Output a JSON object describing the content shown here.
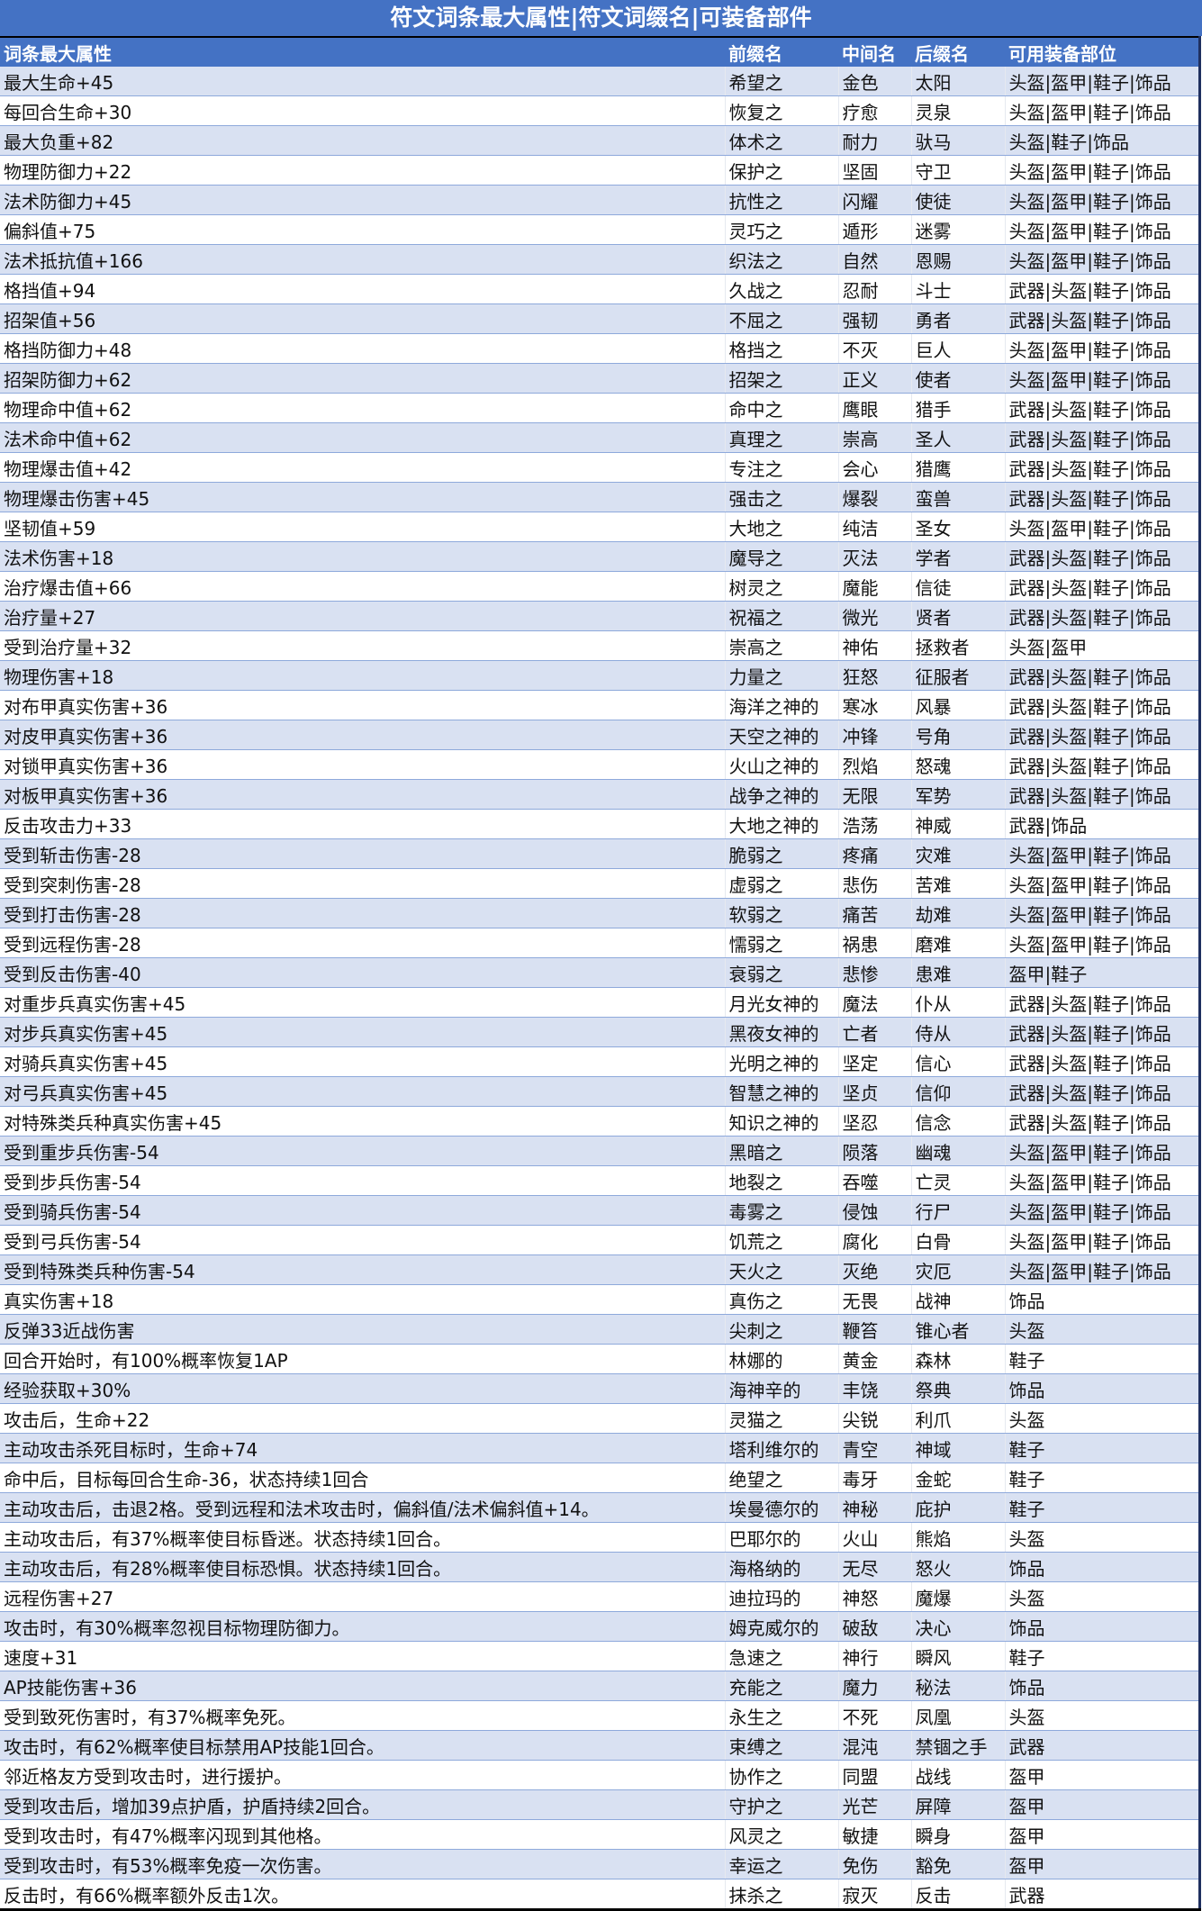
{
  "title": "符文词条最大属性|符文词缀名|可装备部件",
  "headers": [
    "词条最大属性",
    "前缀名",
    "中间名",
    "后缀名",
    "可用装备部位"
  ],
  "colors": {
    "header_bg": "#4472C4",
    "band": "#D9E1F2",
    "row": "#FFFFFF"
  },
  "rows": [
    [
      "最大生命+45",
      "希望之",
      "金色",
      "太阳",
      "头盔|盔甲|鞋子|饰品"
    ],
    [
      "每回合生命+30",
      "恢复之",
      "疗愈",
      "灵泉",
      "头盔|盔甲|鞋子|饰品"
    ],
    [
      "最大负重+82",
      "体术之",
      "耐力",
      "驮马",
      "头盔|鞋子|饰品"
    ],
    [
      "物理防御力+22",
      "保护之",
      "坚固",
      "守卫",
      "头盔|盔甲|鞋子|饰品"
    ],
    [
      "法术防御力+45",
      "抗性之",
      "闪耀",
      "使徒",
      "头盔|盔甲|鞋子|饰品"
    ],
    [
      "偏斜值+75",
      "灵巧之",
      "遁形",
      "迷雾",
      "头盔|盔甲|鞋子|饰品"
    ],
    [
      "法术抵抗值+166",
      "织法之",
      "自然",
      "恩赐",
      "头盔|盔甲|鞋子|饰品"
    ],
    [
      "格挡值+94",
      "久战之",
      "忍耐",
      "斗士",
      "武器|头盔|鞋子|饰品"
    ],
    [
      "招架值+56",
      "不屈之",
      "强韧",
      "勇者",
      "武器|头盔|鞋子|饰品"
    ],
    [
      "格挡防御力+48",
      "格挡之",
      "不灭",
      "巨人",
      "头盔|盔甲|鞋子|饰品"
    ],
    [
      "招架防御力+62",
      "招架之",
      "正义",
      "使者",
      "头盔|盔甲|鞋子|饰品"
    ],
    [
      "物理命中值+62",
      "命中之",
      "鹰眼",
      "猎手",
      "武器|头盔|鞋子|饰品"
    ],
    [
      "法术命中值+62",
      "真理之",
      "崇高",
      "圣人",
      "武器|头盔|鞋子|饰品"
    ],
    [
      "物理爆击值+42",
      "专注之",
      "会心",
      "猎鹰",
      "武器|头盔|鞋子|饰品"
    ],
    [
      "物理爆击伤害+45",
      "强击之",
      "爆裂",
      "蛮兽",
      "武器|头盔|鞋子|饰品"
    ],
    [
      "坚韧值+59",
      "大地之",
      "纯洁",
      "圣女",
      "头盔|盔甲|鞋子|饰品"
    ],
    [
      "法术伤害+18",
      "魔导之",
      "灭法",
      "学者",
      "武器|头盔|鞋子|饰品"
    ],
    [
      "治疗爆击值+66",
      "树灵之",
      "魔能",
      "信徒",
      "武器|头盔|鞋子|饰品"
    ],
    [
      "治疗量+27",
      "祝福之",
      "微光",
      "贤者",
      "武器|头盔|鞋子|饰品"
    ],
    [
      "受到治疗量+32",
      "崇高之",
      "神佑",
      "拯救者",
      "头盔|盔甲"
    ],
    [
      "物理伤害+18",
      "力量之",
      "狂怒",
      "征服者",
      "武器|头盔|鞋子|饰品"
    ],
    [
      "对布甲真实伤害+36",
      "海洋之神的",
      "寒冰",
      "风暴",
      "武器|头盔|鞋子|饰品"
    ],
    [
      "对皮甲真实伤害+36",
      "天空之神的",
      "冲锋",
      "号角",
      "武器|头盔|鞋子|饰品"
    ],
    [
      "对锁甲真实伤害+36",
      "火山之神的",
      "烈焰",
      "怒魂",
      "武器|头盔|鞋子|饰品"
    ],
    [
      "对板甲真实伤害+36",
      "战争之神的",
      "无限",
      "军势",
      "武器|头盔|鞋子|饰品"
    ],
    [
      "反击攻击力+33",
      "大地之神的",
      "浩荡",
      "神威",
      "武器|饰品"
    ],
    [
      "受到斩击伤害-28",
      "脆弱之",
      "疼痛",
      "灾难",
      "头盔|盔甲|鞋子|饰品"
    ],
    [
      "受到突刺伤害-28",
      "虚弱之",
      "悲伤",
      "苦难",
      "头盔|盔甲|鞋子|饰品"
    ],
    [
      "受到打击伤害-28",
      "软弱之",
      "痛苦",
      "劫难",
      "头盔|盔甲|鞋子|饰品"
    ],
    [
      "受到远程伤害-28",
      "懦弱之",
      "祸患",
      "磨难",
      "头盔|盔甲|鞋子|饰品"
    ],
    [
      "受到反击伤害-40",
      "衰弱之",
      "悲惨",
      "患难",
      "盔甲|鞋子"
    ],
    [
      "对重步兵真实伤害+45",
      "月光女神的",
      "魔法",
      "仆从",
      "武器|头盔|鞋子|饰品"
    ],
    [
      "对步兵真实伤害+45",
      "黑夜女神的",
      "亡者",
      "侍从",
      "武器|头盔|鞋子|饰品"
    ],
    [
      "对骑兵真实伤害+45",
      "光明之神的",
      "坚定",
      "信心",
      "武器|头盔|鞋子|饰品"
    ],
    [
      "对弓兵真实伤害+45",
      "智慧之神的",
      "坚贞",
      "信仰",
      "武器|头盔|鞋子|饰品"
    ],
    [
      "对特殊类兵种真实伤害+45",
      "知识之神的",
      "坚忍",
      "信念",
      "武器|头盔|鞋子|饰品"
    ],
    [
      "受到重步兵伤害-54",
      "黑暗之",
      "陨落",
      "幽魂",
      "头盔|盔甲|鞋子|饰品"
    ],
    [
      "受到步兵伤害-54",
      "地裂之",
      "吞噬",
      "亡灵",
      "头盔|盔甲|鞋子|饰品"
    ],
    [
      "受到骑兵伤害-54",
      "毒雾之",
      "侵蚀",
      "行尸",
      "头盔|盔甲|鞋子|饰品"
    ],
    [
      "受到弓兵伤害-54",
      "饥荒之",
      "腐化",
      "白骨",
      "头盔|盔甲|鞋子|饰品"
    ],
    [
      "受到特殊类兵种伤害-54",
      "天火之",
      "灭绝",
      "灾厄",
      "头盔|盔甲|鞋子|饰品"
    ],
    [
      "真实伤害+18",
      "真伤之",
      "无畏",
      "战神",
      "饰品"
    ],
    [
      "反弹33近战伤害",
      "尖刺之",
      "鞭笞",
      "锥心者",
      "头盔"
    ],
    [
      "回合开始时，有100%概率恢复1AP",
      "林娜的",
      "黄金",
      "森林",
      "鞋子"
    ],
    [
      "经验获取+30%",
      "海神辛的",
      "丰饶",
      "祭典",
      "饰品"
    ],
    [
      "攻击后，生命+22",
      "灵猫之",
      "尖锐",
      "利爪",
      "头盔"
    ],
    [
      "主动攻击杀死目标时，生命+74",
      "塔利维尔的",
      "青空",
      "神域",
      "鞋子"
    ],
    [
      "命中后，目标每回合生命-36，状态持续1回合",
      "绝望之",
      "毒牙",
      "金蛇",
      "鞋子"
    ],
    [
      "主动攻击后，击退2格。受到远程和法术攻击时，偏斜值/法术偏斜值+14。",
      "埃曼德尔的",
      "神秘",
      "庇护",
      "鞋子"
    ],
    [
      "主动攻击后，有37%概率使目标昏迷。状态持续1回合。",
      "巴耶尔的",
      "火山",
      "熊焰",
      "头盔"
    ],
    [
      "主动攻击后，有28%概率使目标恐惧。状态持续1回合。",
      "海格纳的",
      "无尽",
      "怒火",
      "饰品"
    ],
    [
      "远程伤害+27",
      "迪拉玛的",
      "神怒",
      "魔爆",
      "头盔"
    ],
    [
      "攻击时，有30%概率忽视目标物理防御力。",
      "姆克威尔的",
      "破敌",
      "决心",
      "饰品"
    ],
    [
      "速度+31",
      "急速之",
      "神行",
      "瞬风",
      "鞋子"
    ],
    [
      "AP技能伤害+36",
      "充能之",
      "魔力",
      "秘法",
      "饰品"
    ],
    [
      "受到致死伤害时，有37%概率免死。",
      "永生之",
      "不死",
      "凤凰",
      "头盔"
    ],
    [
      "攻击时，有62%概率使目标禁用AP技能1回合。",
      "束缚之",
      "混沌",
      "禁锢之手",
      "武器"
    ],
    [
      "邻近格友方受到攻击时，进行援护。",
      "协作之",
      "同盟",
      "战线",
      "盔甲"
    ],
    [
      "受到攻击后，增加39点护盾，护盾持续2回合。",
      "守护之",
      "光芒",
      "屏障",
      "盔甲"
    ],
    [
      "受到攻击时，有47%概率闪现到其他格。",
      "风灵之",
      "敏捷",
      "瞬身",
      "盔甲"
    ],
    [
      "受到攻击时，有53%概率免疫一次伤害。",
      "幸运之",
      "免伤",
      "豁免",
      "盔甲"
    ],
    [
      "反击时，有66%概率额外反击1次。",
      "抹杀之",
      "寂灭",
      "反击",
      "武器"
    ]
  ]
}
